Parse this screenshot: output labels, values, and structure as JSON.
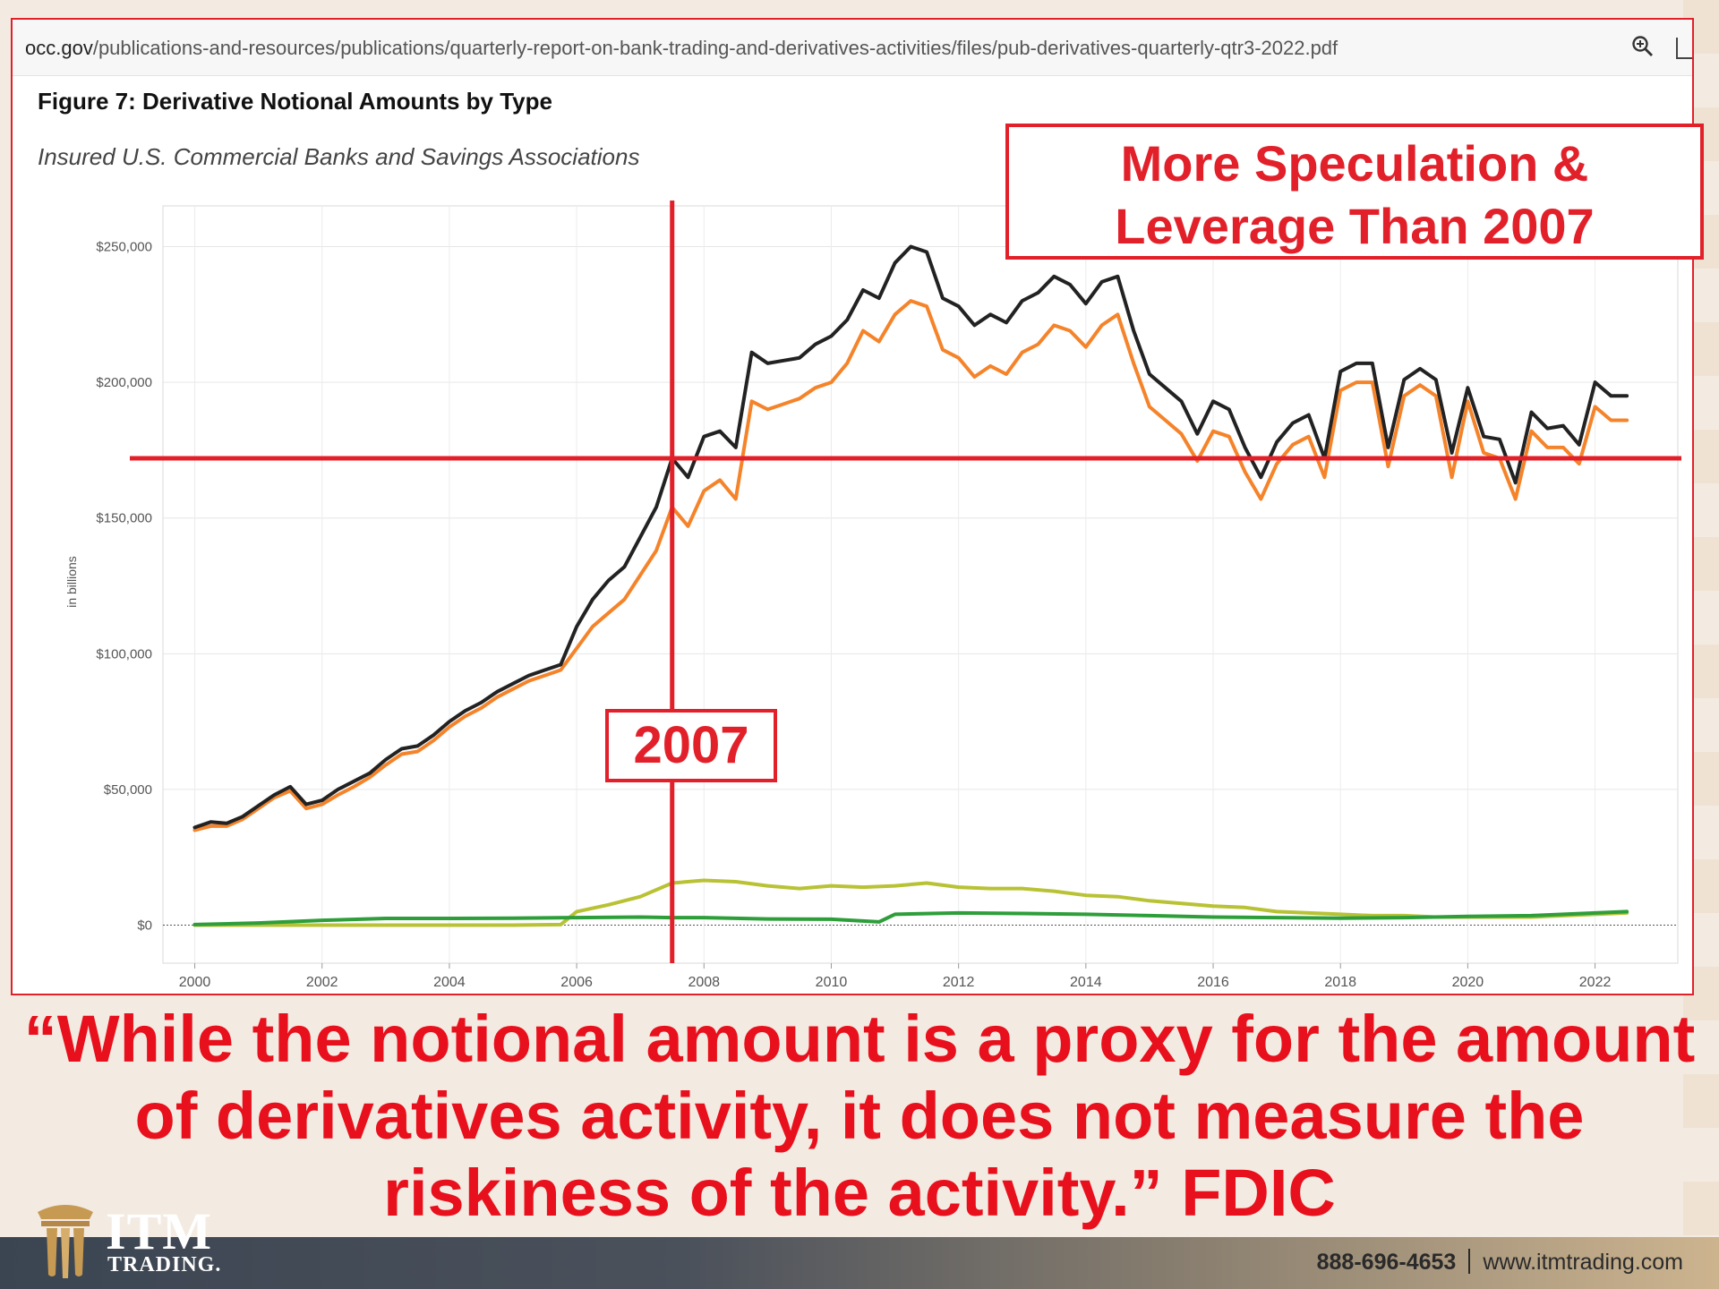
{
  "browser": {
    "url_host": "occ.gov",
    "url_path": "/publications-and-resources/publications/quarterly-report-on-bank-trading-and-derivatives-activities/files/pub-derivatives-quarterly-qtr3-2022.pdf"
  },
  "figure": {
    "title": "Figure 7: Derivative Notional Amounts by Type",
    "subtitle": "Insured U.S. Commercial Banks and Savings Associations"
  },
  "annotations": {
    "callout_line1": "More Speculation &",
    "callout_line2": "Leverage Than 2007",
    "year_label": "2007",
    "reference_level": 172000,
    "reference_year": 2007.5
  },
  "quote": "“While the notional amount is a proxy for the amount of derivatives activity, it does not measure the riskiness of the activity.” FDIC",
  "footer": {
    "brand_line1": "ITM",
    "brand_line2": "TRADING.",
    "phone": "888-696-4653",
    "website": "www.itmtrading.com"
  },
  "colors": {
    "accent_red": "#e2202a",
    "series_total": "#222222",
    "series_orange": "#f5832a",
    "series_yellow": "#b8c234",
    "series_green": "#2e9e3a"
  },
  "chart_data": {
    "type": "line",
    "title": "Figure 7: Derivative Notional Amounts by Type",
    "ylabel": "in billions",
    "xlabel": "",
    "xlim": [
      1999.5,
      2023.3
    ],
    "ylim": [
      -14000,
      265000
    ],
    "yticks": [
      0,
      50000,
      100000,
      150000,
      200000,
      250000
    ],
    "ytick_labels": [
      "$0",
      "$50,000",
      "$100,000",
      "$150,000",
      "$200,000",
      "$250,000"
    ],
    "xticks": [
      2000,
      2002,
      2004,
      2006,
      2008,
      2010,
      2012,
      2014,
      2016,
      2018,
      2020,
      2022
    ],
    "xtick_labels": [
      "2000",
      "2002",
      "2004",
      "2006",
      "2008",
      "2010",
      "2012",
      "2014",
      "2016",
      "2018",
      "2020",
      "2022"
    ],
    "grid": true,
    "series": [
      {
        "key": "total",
        "color": "#222222",
        "x": [
          2000,
          2000.25,
          2000.5,
          2000.75,
          2001,
          2001.25,
          2001.5,
          2001.75,
          2002,
          2002.25,
          2002.5,
          2002.75,
          2003,
          2003.25,
          2003.5,
          2003.75,
          2004,
          2004.25,
          2004.5,
          2004.75,
          2005,
          2005.25,
          2005.5,
          2005.75,
          2006,
          2006.25,
          2006.5,
          2006.75,
          2007,
          2007.25,
          2007.5,
          2007.75,
          2008,
          2008.25,
          2008.5,
          2008.75,
          2009,
          2009.25,
          2009.5,
          2009.75,
          2010,
          2010.25,
          2010.5,
          2010.75,
          2011,
          2011.25,
          2011.5,
          2011.75,
          2012,
          2012.25,
          2012.5,
          2012.75,
          2013,
          2013.25,
          2013.5,
          2013.75,
          2014,
          2014.25,
          2014.5,
          2014.75,
          2015,
          2015.25,
          2015.5,
          2015.75,
          2016,
          2016.25,
          2016.5,
          2016.75,
          2017,
          2017.25,
          2017.5,
          2017.75,
          2018,
          2018.25,
          2018.5,
          2018.75,
          2019,
          2019.25,
          2019.5,
          2019.75,
          2020,
          2020.25,
          2020.5,
          2020.75,
          2021,
          2021.25,
          2021.5,
          2021.75,
          2022,
          2022.25,
          2022.5
        ],
        "values": [
          36000,
          38000,
          37500,
          40000,
          44000,
          48000,
          51000,
          44500,
          46000,
          50000,
          53000,
          56000,
          61000,
          65000,
          66000,
          70000,
          75000,
          79000,
          82000,
          86000,
          89000,
          92000,
          94000,
          96000,
          110000,
          120000,
          127000,
          132000,
          143000,
          154000,
          172000,
          165000,
          180000,
          182000,
          176000,
          211000,
          207000,
          208000,
          209000,
          214000,
          217000,
          223000,
          234000,
          231000,
          244000,
          250000,
          248000,
          231000,
          228000,
          221000,
          225000,
          222000,
          230000,
          233000,
          239000,
          236000,
          229000,
          237000,
          239000,
          219000,
          203000,
          198000,
          193000,
          181000,
          193000,
          190000,
          176000,
          165000,
          178000,
          185000,
          188000,
          172000,
          204000,
          207000,
          207000,
          176000,
          201000,
          205000,
          201000,
          174000,
          198000,
          180000,
          179000,
          163000,
          189000,
          183000,
          184000,
          177000,
          200000,
          195000,
          195000
        ]
      },
      {
        "key": "orange",
        "color": "#f5832a",
        "x": [
          2000,
          2000.25,
          2000.5,
          2000.75,
          2001,
          2001.25,
          2001.5,
          2001.75,
          2002,
          2002.25,
          2002.5,
          2002.75,
          2003,
          2003.25,
          2003.5,
          2003.75,
          2004,
          2004.25,
          2004.5,
          2004.75,
          2005,
          2005.25,
          2005.5,
          2005.75,
          2006,
          2006.25,
          2006.5,
          2006.75,
          2007,
          2007.25,
          2007.5,
          2007.75,
          2008,
          2008.25,
          2008.5,
          2008.75,
          2009,
          2009.25,
          2009.5,
          2009.75,
          2010,
          2010.25,
          2010.5,
          2010.75,
          2011,
          2011.25,
          2011.5,
          2011.75,
          2012,
          2012.25,
          2012.5,
          2012.75,
          2013,
          2013.25,
          2013.5,
          2013.75,
          2014,
          2014.25,
          2014.5,
          2014.75,
          2015,
          2015.25,
          2015.5,
          2015.75,
          2016,
          2016.25,
          2016.5,
          2016.75,
          2017,
          2017.25,
          2017.5,
          2017.75,
          2018,
          2018.25,
          2018.5,
          2018.75,
          2019,
          2019.25,
          2019.5,
          2019.75,
          2020,
          2020.25,
          2020.5,
          2020.75,
          2021,
          2021.25,
          2021.5,
          2021.75,
          2022,
          2022.25,
          2022.5
        ],
        "values": [
          35000,
          36500,
          36500,
          39000,
          43000,
          47000,
          49500,
          43000,
          44500,
          48000,
          51000,
          54500,
          59000,
          63000,
          64000,
          68000,
          73000,
          77000,
          80000,
          84000,
          87000,
          90000,
          92000,
          94000,
          102000,
          110000,
          115000,
          120000,
          129000,
          138000,
          154000,
          147000,
          160000,
          164000,
          157000,
          193000,
          190000,
          192000,
          194000,
          198000,
          200000,
          207000,
          219000,
          215000,
          225000,
          230000,
          228000,
          212000,
          209000,
          202000,
          206000,
          203000,
          211000,
          214000,
          221000,
          219000,
          213000,
          221000,
          225000,
          207000,
          191000,
          186000,
          181000,
          171000,
          182000,
          180000,
          167000,
          157000,
          170000,
          177000,
          180000,
          165000,
          197000,
          200000,
          200000,
          169000,
          195000,
          199000,
          195000,
          165000,
          193000,
          174000,
          172000,
          157000,
          182000,
          176000,
          176000,
          170000,
          191000,
          186000,
          186000
        ]
      },
      {
        "key": "yellow",
        "color": "#b8c234",
        "x": [
          2000,
          2001,
          2002,
          2003,
          2004,
          2005,
          2005.75,
          2006,
          2006.5,
          2007,
          2007.5,
          2008,
          2008.5,
          2009,
          2009.5,
          2010,
          2010.5,
          2011,
          2011.5,
          2012,
          2012.5,
          2013,
          2013.5,
          2014,
          2014.5,
          2015,
          2015.5,
          2016,
          2016.5,
          2017,
          2017.5,
          2018,
          2018.5,
          2019,
          2019.5,
          2020,
          2020.5,
          2021,
          2021.5,
          2022,
          2022.5
        ],
        "values": [
          0,
          0,
          0,
          0,
          0,
          0,
          200,
          5000,
          7500,
          10500,
          15500,
          16500,
          16000,
          14500,
          13500,
          14500,
          14000,
          14500,
          15500,
          14000,
          13500,
          13500,
          12500,
          11000,
          10500,
          9000,
          8000,
          7000,
          6500,
          5000,
          4500,
          4000,
          3500,
          3500,
          3000,
          3000,
          3000,
          3000,
          3500,
          4000,
          4500
        ]
      },
      {
        "key": "green",
        "color": "#2e9e3a",
        "x": [
          2000,
          2001,
          2002,
          2003,
          2004,
          2005,
          2006,
          2007,
          2007.5,
          2008,
          2009,
          2010,
          2010.75,
          2011,
          2012,
          2013,
          2014,
          2015,
          2016,
          2017,
          2018,
          2019,
          2020,
          2021,
          2022,
          2022.5
        ],
        "values": [
          200,
          800,
          1800,
          2500,
          2500,
          2600,
          2800,
          3000,
          2800,
          2800,
          2300,
          2200,
          1200,
          4000,
          4500,
          4300,
          4000,
          3500,
          3000,
          2800,
          2600,
          2800,
          3200,
          3500,
          4500,
          5000
        ]
      }
    ]
  }
}
